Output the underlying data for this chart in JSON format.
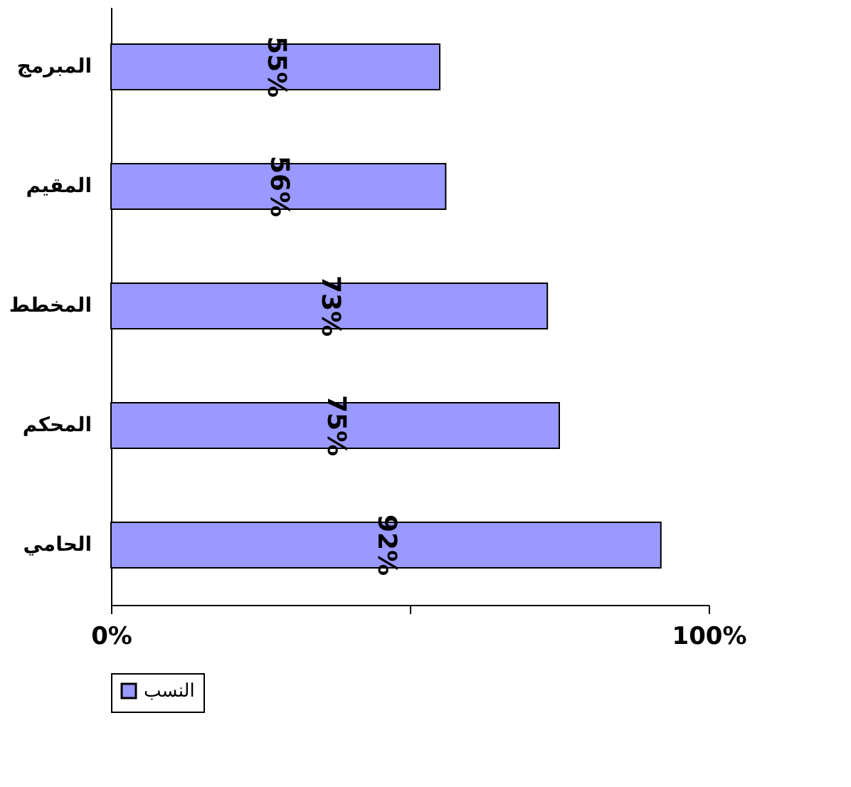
{
  "chart_data": {
    "type": "bar",
    "orientation": "horizontal",
    "categories": [
      "المبرمج",
      "المقيم",
      "المخطط",
      "المحكم",
      "الحامي"
    ],
    "series": [
      {
        "name": "النسب",
        "color": "#9999ff",
        "values": [
          55,
          56,
          73,
          75,
          92
        ],
        "value_labels": [
          "55%",
          "56%",
          "73%",
          "75%",
          "92%"
        ]
      }
    ],
    "xlim": [
      0,
      100
    ],
    "xticks": [
      {
        "value": 0,
        "label": "0%"
      },
      {
        "value": 50,
        "label": null
      },
      {
        "value": 100,
        "label": "100%"
      }
    ],
    "grid": false,
    "legend": "bottom"
  }
}
